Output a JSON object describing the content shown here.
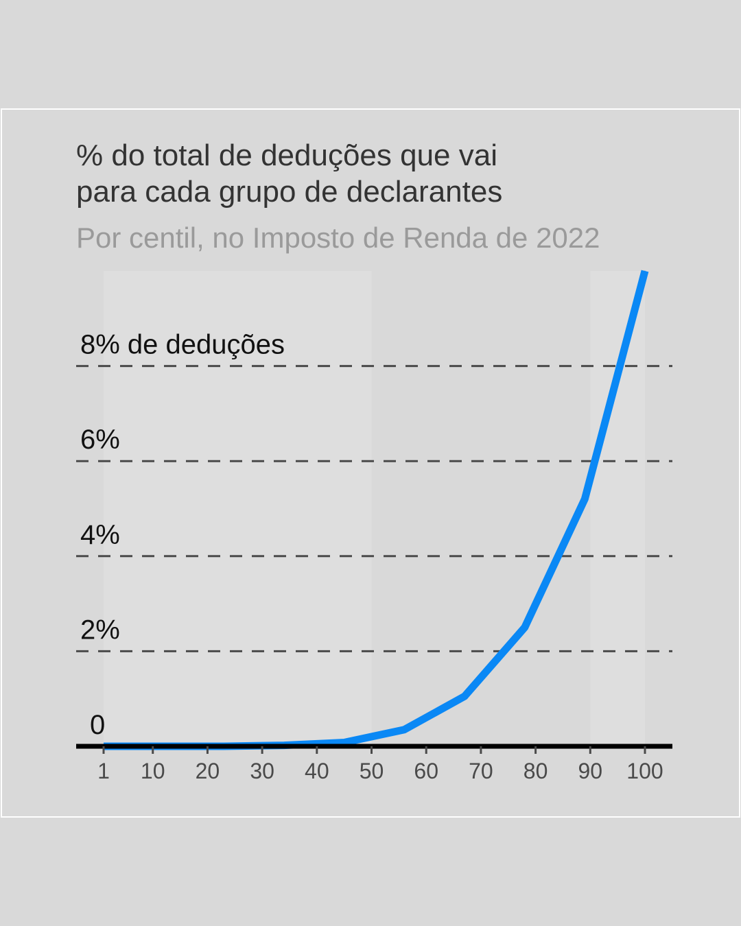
{
  "title_lines": [
    "% do total de deduções que vai",
    "para cada grupo de declarantes"
  ],
  "subtitle": "Por centil, no Imposto de Renda de 2022",
  "colors": {
    "line": "#0a88f5",
    "background": "#d9d9d9",
    "band": "#dedede",
    "gridline": "#4a4a4a",
    "baseline": "#000000",
    "card_border": "#ffffff"
  },
  "chart_data": {
    "type": "line",
    "title": "% do total de deduções que vai para cada grupo de declarantes",
    "subtitle": "Por centil, no Imposto de Renda de 2022",
    "xlabel": "",
    "ylabel": "",
    "x_ticks": [
      1,
      10,
      20,
      30,
      40,
      50,
      60,
      70,
      80,
      90,
      100
    ],
    "y_ticks": [
      0,
      2,
      4,
      6,
      8
    ],
    "y_tick_labels": [
      "0",
      "2%",
      "4%",
      "6%",
      "8% de deduções"
    ],
    "xlim": [
      1,
      100
    ],
    "ylim": [
      0,
      10
    ],
    "grid": "horizontal dashed",
    "series": [
      {
        "x": [
          1,
          12,
          23,
          34,
          45,
          56,
          67,
          78,
          89,
          100
        ],
        "values": [
          0.0,
          0.0,
          0.0,
          0.02,
          0.08,
          0.35,
          1.05,
          2.5,
          5.2,
          10.0
        ]
      }
    ]
  }
}
